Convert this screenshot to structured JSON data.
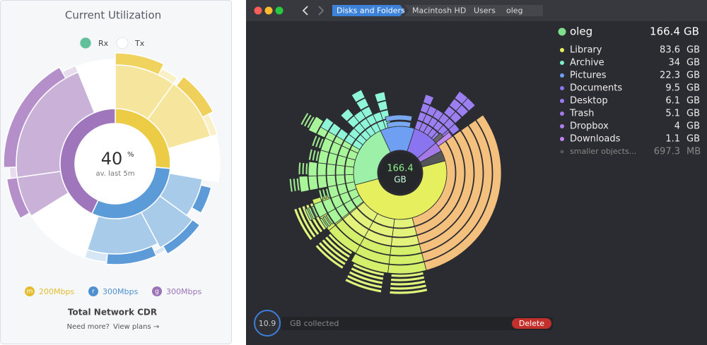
{
  "utilization": {
    "title": "Current Utilization",
    "legend": [
      {
        "label": "Rx",
        "color": "#5fc09a"
      },
      {
        "label": "Tx",
        "color": "#ffffff"
      }
    ],
    "center": {
      "value": 40,
      "unit": "%",
      "caption": "av. last 5m"
    },
    "links": [
      {
        "icon": "m",
        "label": "200Mbps",
        "color": "#e3bd2e"
      },
      {
        "icon": "r",
        "label": "300Mbps",
        "color": "#4f8fd0"
      },
      {
        "icon": "g",
        "label": "300Mbps",
        "color": "#9a72b8"
      }
    ],
    "footer": {
      "title": "Total Network CDR",
      "prompt": "Need more?",
      "link": "View plans →"
    }
  },
  "disk": {
    "breadcrumbs": [
      "Disks and Folders",
      "Macintosh HD",
      "Users",
      "oleg"
    ],
    "center": {
      "size": 166.4,
      "unit": "GB"
    },
    "folder": {
      "name": "oleg",
      "size": 166.4,
      "unit": "GB",
      "color": "#7ee08a"
    },
    "items": [
      {
        "name": "Library",
        "size": 83.6,
        "unit": "GB",
        "color": "#e6ef5e"
      },
      {
        "name": "Archive",
        "size": 34,
        "unit": "GB",
        "color": "#7ef0c8"
      },
      {
        "name": "Pictures",
        "size": 22.3,
        "unit": "GB",
        "color": "#6f9ff2"
      },
      {
        "name": "Documents",
        "size": 9.5,
        "unit": "GB",
        "color": "#8a74f0"
      },
      {
        "name": "Desktop",
        "size": 6.1,
        "unit": "GB",
        "color": "#9b7cf2"
      },
      {
        "name": "Trash",
        "size": 5.1,
        "unit": "GB",
        "color": "#a57ae8"
      },
      {
        "name": "Dropbox",
        "size": 4,
        "unit": "GB",
        "color": "#b17ef0"
      },
      {
        "name": "Downloads",
        "size": 1.1,
        "unit": "GB",
        "color": "#c084f0"
      },
      {
        "name": "smaller objects...",
        "size": 697.3,
        "unit": "MB",
        "color": "#555658"
      }
    ],
    "collected": {
      "size": 10.9,
      "label": "GB collected",
      "action": "Delete"
    }
  }
}
